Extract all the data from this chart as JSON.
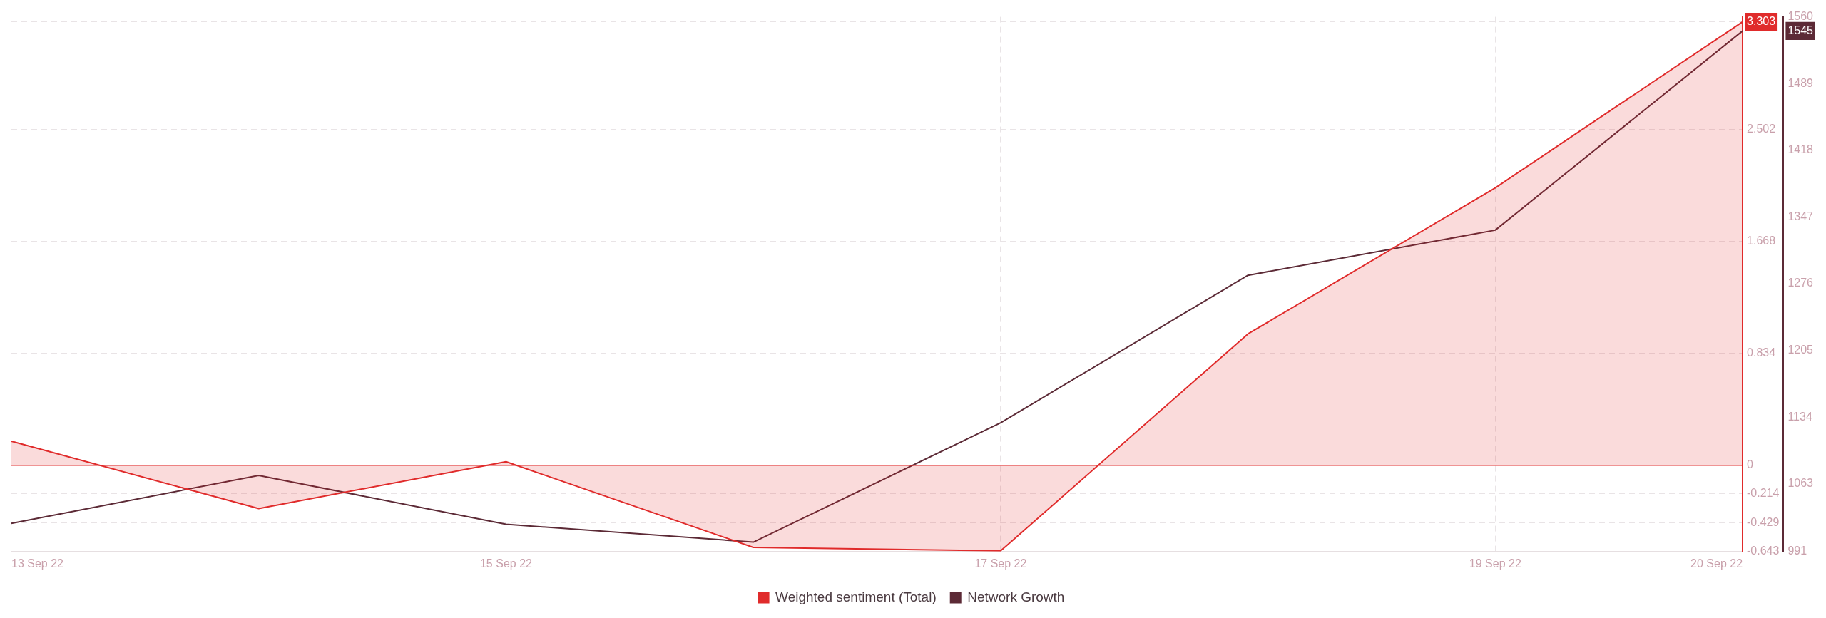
{
  "chart_data": {
    "type": "line",
    "categories": [
      "13 Sep 22",
      null,
      "15 Sep 22",
      null,
      "17 Sep 22",
      null,
      "19 Sep 22",
      "20 Sep 22"
    ],
    "series": [
      {
        "name": "Weighted sentiment (Total)",
        "type": "area",
        "color": "#e02b2b",
        "values": [
          0.179,
          -0.323,
          0.026,
          -0.612,
          -0.638,
          0.978,
          2.066,
          3.303
        ]
      },
      {
        "name": "Network Growth",
        "type": "line",
        "color": "#5c2a36",
        "axis": "y2",
        "values": [
          1021,
          1072,
          1020,
          1001,
          1128,
          1285,
          1333,
          1545
        ]
      }
    ],
    "ylim": [
      -0.643,
      3.34
    ],
    "yticks": [
      -0.643,
      -0.429,
      -0.214,
      0,
      0.834,
      1.668,
      2.502,
      3.303
    ],
    "y2lim": [
      991,
      1560
    ],
    "y2ticks": [
      991,
      1063,
      1134,
      1205,
      1276,
      1347,
      1418,
      1489,
      1545,
      1560
    ],
    "ref_lines": [
      {
        "axis": "y",
        "value": 0,
        "color": "#e02b2b"
      }
    ],
    "grid": true,
    "legend": "bottom",
    "marker": "none",
    "line_style": "solid"
  }
}
